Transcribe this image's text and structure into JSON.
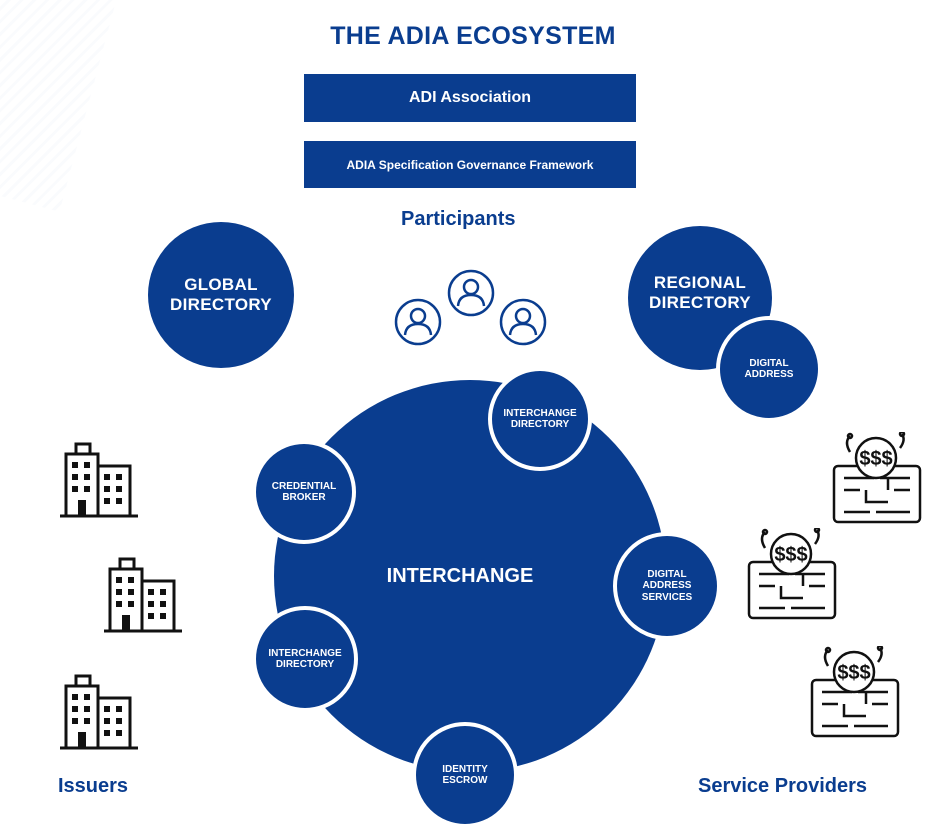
{
  "title": "THE ADIA ECOSYSTEM",
  "bars": {
    "association": "ADI Association",
    "framework": "ADIA Specification Governance Framework"
  },
  "participants": {
    "label": "Participants",
    "icon": "user-circle-icon"
  },
  "global_directory": {
    "line1": "GLOBAL",
    "line2": "DIRECTORY"
  },
  "regional_directory": {
    "line1": "REGIONAL",
    "line2": "DIRECTORY"
  },
  "digital_address": {
    "line1": "DIGITAL",
    "line2": "ADDRESS"
  },
  "interchange": {
    "label": "INTERCHANGE",
    "nodes": {
      "interchange_directory_top": [
        "INTERCHANGE",
        "DIRECTORY"
      ],
      "credential_broker": [
        "CREDENTIAL",
        "BROKER"
      ],
      "digital_address_services": [
        "DIGITAL",
        "ADDRESS",
        "SERVICES"
      ],
      "interchange_directory_left": [
        "INTERCHANGE",
        "DIRECTORY"
      ],
      "identity_escrow": [
        "IDENTITY",
        "ESCROW"
      ]
    }
  },
  "issuers": {
    "label": "Issuers",
    "icon": "building-icon"
  },
  "service_providers": {
    "label": "Service Providers",
    "icon": "payment-terminal-icon"
  },
  "colors": {
    "primary": "#0a3d8f",
    "background": "#ffffff",
    "outline": "#111111"
  }
}
